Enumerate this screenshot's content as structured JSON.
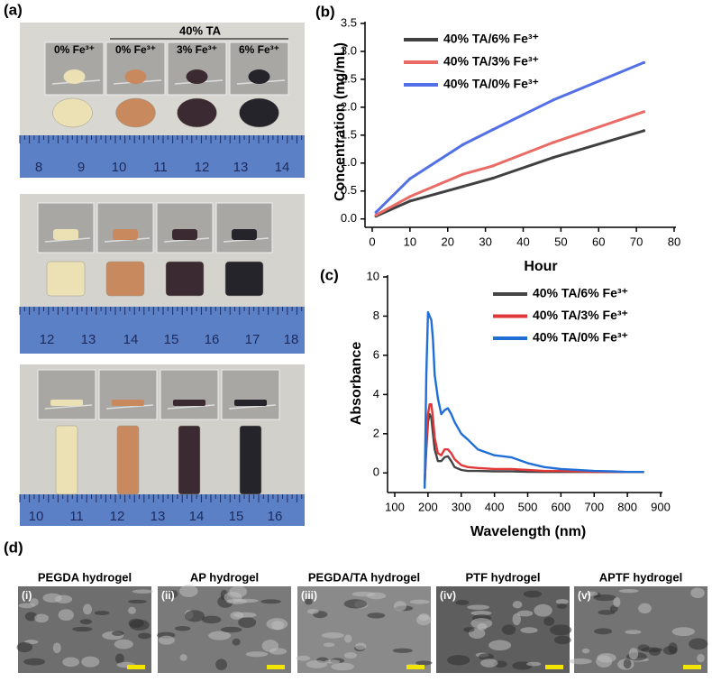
{
  "panel_labels": [
    "(a)",
    "(b)",
    "(c)",
    "(d)"
  ],
  "photos": {
    "group_label": "40% TA",
    "insets": [
      "0% Fe³⁺",
      "0% Fe³⁺",
      "3% Fe³⁺",
      "6% Fe³⁺"
    ],
    "rulers": [
      [
        "8",
        "9",
        "10",
        "11",
        "12",
        "13",
        "14"
      ],
      [
        "12",
        "13",
        "14",
        "15",
        "16",
        "17",
        "18"
      ],
      [
        "10",
        "11",
        "12",
        "13",
        "14",
        "15",
        "16"
      ]
    ]
  },
  "chart_data": [
    {
      "type": "line",
      "x_label": "Hour",
      "y_label": "Concentration (mg/mL)",
      "x": [
        1,
        10,
        24,
        32,
        48,
        72
      ],
      "series": [
        {
          "name": "40% TA/6% Fe³⁺",
          "color": "#404040",
          "values": [
            0.05,
            0.32,
            0.58,
            0.73,
            1.1,
            1.58
          ]
        },
        {
          "name": "40% TA/3% Fe³⁺",
          "color": "#ea6b66",
          "values": [
            0.07,
            0.4,
            0.8,
            0.95,
            1.37,
            1.92
          ]
        },
        {
          "name": "40% TA/0% Fe³⁺",
          "color": "#5470e6",
          "values": [
            0.12,
            0.72,
            1.33,
            1.6,
            2.13,
            2.8
          ]
        }
      ],
      "xlim": [
        0,
        80
      ],
      "xticks": [
        0,
        10,
        20,
        30,
        40,
        50,
        60,
        70,
        80
      ],
      "ylim": [
        -0.15,
        3.5
      ],
      "yticks": [
        {
          "value": 0,
          "label": "0.0"
        },
        0.5,
        {
          "value": 1,
          "label": "1.0"
        },
        1.5,
        {
          "value": 2,
          "label": "2.0"
        },
        2.5,
        {
          "value": 3,
          "label": "3.0"
        },
        3.5
      ],
      "markers": true,
      "legend": "upper left"
    },
    {
      "type": "line",
      "x_label": "Wavelength (nm)",
      "y_label": "Absorbance",
      "x": [
        190,
        195,
        200,
        205,
        210,
        215,
        220,
        230,
        240,
        250,
        260,
        270,
        280,
        300,
        320,
        350,
        400,
        450,
        500,
        550,
        600,
        650,
        700,
        750,
        800,
        850
      ],
      "series": [
        {
          "name": "40% TA/6% Fe³⁺",
          "color": "#454545",
          "values": [
            -0.5,
            1.2,
            2.6,
            3.0,
            2.8,
            2.0,
            1.2,
            0.6,
            0.6,
            0.8,
            0.85,
            0.6,
            0.3,
            0.15,
            0.1,
            0.1,
            0.08,
            0.08,
            0.06,
            0.05,
            0.05,
            0.05,
            0.05,
            0.05,
            0.05,
            0.05
          ]
        },
        {
          "name": "40% TA/3% Fe³⁺",
          "color": "#e03838",
          "values": [
            -0.6,
            1.5,
            3.0,
            3.5,
            3.5,
            2.8,
            1.8,
            1.0,
            0.9,
            1.2,
            1.2,
            1.0,
            0.7,
            0.4,
            0.3,
            0.25,
            0.2,
            0.2,
            0.15,
            0.1,
            0.1,
            0.08,
            0.05,
            0.05,
            0.05,
            0.05
          ]
        },
        {
          "name": "40% TA/0% Fe³⁺",
          "color": "#1f6fd6",
          "values": [
            -0.8,
            5.0,
            8.2,
            8.0,
            7.8,
            6.8,
            5.0,
            3.8,
            3.0,
            3.2,
            3.3,
            3.0,
            2.6,
            2.0,
            1.7,
            1.2,
            0.9,
            0.8,
            0.5,
            0.3,
            0.2,
            0.15,
            0.1,
            0.08,
            0.05,
            0.05
          ]
        }
      ],
      "xlim": [
        100,
        900
      ],
      "xticks": [
        100,
        200,
        300,
        400,
        500,
        600,
        700,
        800,
        900
      ],
      "ylim": [
        -1,
        10
      ],
      "yticks": [
        0,
        2,
        4,
        6,
        8,
        10
      ],
      "markers": false,
      "legend": "upper right"
    }
  ],
  "sem": [
    {
      "title": "PEGDA hydrogel",
      "tag": "(i)"
    },
    {
      "title": "AP hydrogel",
      "tag": "(ii)"
    },
    {
      "title": "PEGDA/TA hydrogel",
      "tag": "(iii)"
    },
    {
      "title": "PTF hydrogel",
      "tag": "(iv)"
    },
    {
      "title": "APTF hydrogel",
      "tag": "(v)"
    }
  ]
}
